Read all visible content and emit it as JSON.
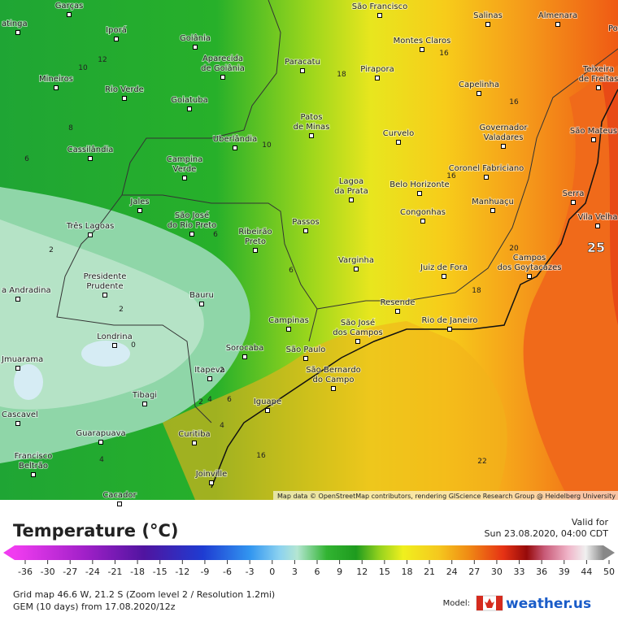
{
  "map": {
    "cities": [
      {
        "lines": [
          "Garças"
        ]
      },
      {
        "lines": [
          "atinga"
        ]
      },
      {
        "lines": [
          "Iporá"
        ]
      },
      {
        "lines": [
          "Goiânia"
        ]
      },
      {
        "lines": [
          "Aparecida",
          "de Goiânia"
        ]
      },
      {
        "lines": [
          "Paracatu"
        ]
      },
      {
        "lines": [
          "São Francisco"
        ]
      },
      {
        "lines": [
          "Salinas"
        ]
      },
      {
        "lines": [
          "Almenara"
        ]
      },
      {
        "lines": [
          "Port"
        ]
      },
      {
        "lines": [
          "Montes Claros"
        ]
      },
      {
        "lines": [
          "Pirapora"
        ]
      },
      {
        "lines": [
          "Teixeira",
          "de Freitas"
        ]
      },
      {
        "lines": [
          "Mineiros"
        ]
      },
      {
        "lines": [
          "Rio Verde"
        ]
      },
      {
        "lines": [
          "Goiatuba"
        ]
      },
      {
        "lines": [
          "Capelinha"
        ]
      },
      {
        "lines": [
          "Patos",
          "de Minas"
        ]
      },
      {
        "lines": [
          "Curvelo"
        ]
      },
      {
        "lines": [
          "Governador",
          "Valadares"
        ]
      },
      {
        "lines": [
          "São Mateus"
        ]
      },
      {
        "lines": [
          "Uberlândia"
        ]
      },
      {
        "lines": [
          "Cassilândia"
        ]
      },
      {
        "lines": [
          "Campina",
          "Verde"
        ]
      },
      {
        "lines": [
          "Coronel Fabriciano"
        ]
      },
      {
        "lines": [
          "Lagoa",
          "da Prata"
        ]
      },
      {
        "lines": [
          "Belo Horizonte"
        ]
      },
      {
        "lines": [
          "Serra"
        ]
      },
      {
        "lines": [
          "Manhuaçu"
        ]
      },
      {
        "lines": [
          "Jales"
        ]
      },
      {
        "lines": [
          "Congonhas"
        ]
      },
      {
        "lines": [
          "Vila Velha"
        ]
      },
      {
        "lines": [
          "São José",
          "do Rio Preto"
        ]
      },
      {
        "lines": [
          "Três Lagoas"
        ]
      },
      {
        "lines": [
          "Passos"
        ]
      },
      {
        "lines": [
          "Ribeirão",
          "Preto"
        ]
      },
      {
        "lines": [
          "Varginha"
        ]
      },
      {
        "lines": [
          "Juiz de Fora"
        ]
      },
      {
        "lines": [
          "Campos",
          "dos Goytacazes"
        ]
      },
      {
        "lines": [
          "Presidente",
          "Prudente"
        ]
      },
      {
        "lines": [
          "a Andradina"
        ]
      },
      {
        "lines": [
          "Bauru"
        ]
      },
      {
        "lines": [
          "Resende"
        ]
      },
      {
        "lines": [
          "Rio de Janeiro"
        ]
      },
      {
        "lines": [
          "Campinas"
        ]
      },
      {
        "lines": [
          "São José",
          "dos Campos"
        ]
      },
      {
        "lines": [
          "Londrina"
        ]
      },
      {
        "lines": [
          "Sorocaba"
        ]
      },
      {
        "lines": [
          "São Paulo"
        ]
      },
      {
        "lines": [
          "Jmuarama"
        ]
      },
      {
        "lines": [
          "Itapeva"
        ]
      },
      {
        "lines": [
          "São Bernardo",
          "do Campo"
        ]
      },
      {
        "lines": [
          "Tibagi"
        ]
      },
      {
        "lines": [
          "Iguape"
        ]
      },
      {
        "lines": [
          "Cascavel"
        ]
      },
      {
        "lines": [
          "Curitiba"
        ]
      },
      {
        "lines": [
          "Guarapuava"
        ]
      },
      {
        "lines": [
          "Francisco",
          "Beltrão"
        ]
      },
      {
        "lines": [
          "Joinville"
        ]
      },
      {
        "lines": [
          "Cacador"
        ]
      }
    ],
    "contour_labels": [
      10,
      12,
      8,
      6,
      18,
      16,
      16,
      16,
      10,
      6,
      6,
      2,
      20,
      18,
      2,
      0,
      2,
      4,
      6,
      2,
      4,
      16,
      22,
      4
    ],
    "highlight_value": 25,
    "attribution": "Map data © OpenStreetMap contributors, rendering GIScience Research Group @ Heidelberg University"
  },
  "legend": {
    "title": "Temperature (°C)",
    "ticks": [
      -36,
      -30,
      -27,
      -24,
      -21,
      -18,
      -15,
      -12,
      -9,
      -6,
      -3,
      0,
      3,
      6,
      9,
      12,
      15,
      18,
      21,
      24,
      27,
      30,
      33,
      36,
      39,
      44,
      50
    ]
  },
  "valid": {
    "label": "Valid for",
    "time": "Sun 23.08.2020, 04:00 CDT"
  },
  "footer": {
    "grid": "Grid map 46.6 W, 21.2 S (Zoom level 2 / Resolution 1.2mi)",
    "model_run": "GEM (10 days) from 17.08.2020/12z",
    "model_label": "Model:",
    "brand": "weather.us"
  }
}
